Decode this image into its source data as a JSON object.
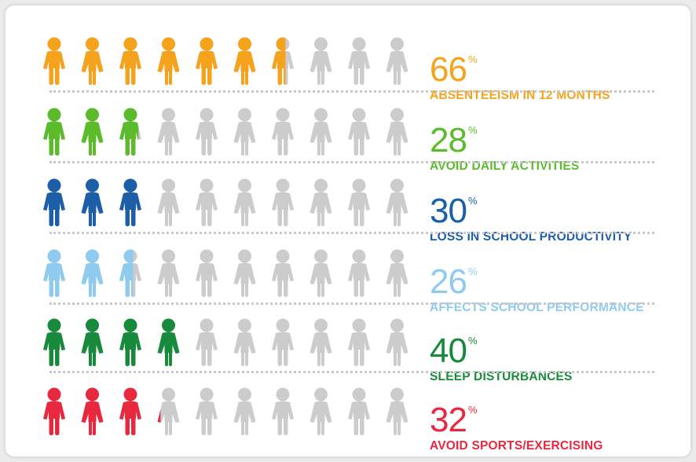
{
  "chart_data": {
    "type": "pictograph",
    "icons_per_row": 10,
    "empty_color": "#cccccc",
    "unit": "%",
    "rows": [
      {
        "value": 66,
        "label": "ABSENTEEISM IN 12 MONTHS",
        "color": "#f5a21c"
      },
      {
        "value": 28,
        "label": "AVOID DAILY ACTIVITIES",
        "color": "#5cbb2b"
      },
      {
        "value": 30,
        "label": "LOSS IN SCHOOL PRODUCTIVITY",
        "color": "#1c5ea8"
      },
      {
        "value": 26,
        "label": "AFFECTS SCHOOL PERFORMANCE",
        "color": "#8fcbee"
      },
      {
        "value": 40,
        "label": "SLEEP DISTURBANCES",
        "color": "#178a3c"
      },
      {
        "value": 32,
        "label": "AVOID SPORTS/EXERCISING",
        "color": "#e8283f"
      }
    ]
  }
}
